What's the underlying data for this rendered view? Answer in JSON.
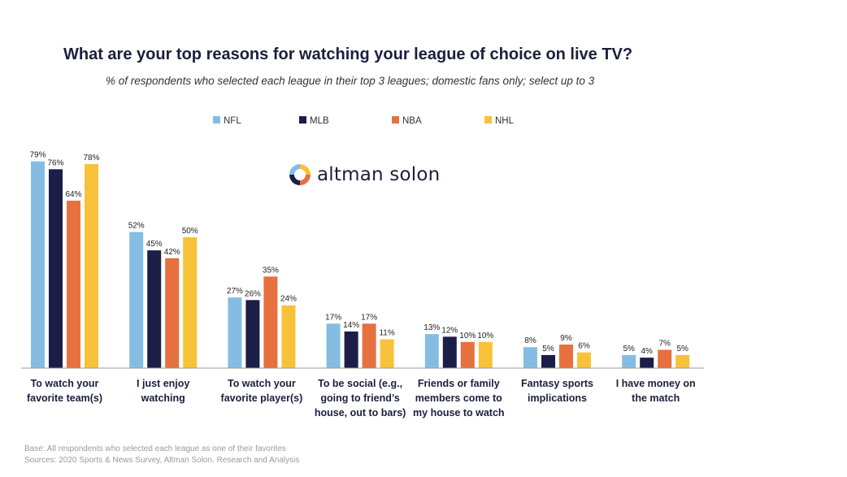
{
  "title": "What are your top reasons for watching your league of choice on live TV?",
  "subtitle": "% of respondents who selected each league in their top 3 leagues; domestic fans only; select up to 3",
  "logo": {
    "text": "altman solon"
  },
  "footer": {
    "base": "Base: All respondents who selected each league as one of their favorites",
    "sources": "Sources: 2020 Sports & News Survey,  Altman Solon. Research and Analysis"
  },
  "colors": {
    "NFL": "#85bde2",
    "MLB": "#1b1e47",
    "NBA": "#e7703f",
    "NHL": "#f8c13a",
    "axis": "#9a9a9a",
    "category_text": "#1a1f3d",
    "label_text": "#222222"
  },
  "chart_data": {
    "type": "bar",
    "legend_position": "top-center",
    "grid": false,
    "ylim": [
      0,
      100
    ],
    "categories": [
      [
        "To watch your",
        "favorite team(s)"
      ],
      [
        "I just enjoy",
        "watching"
      ],
      [
        "To watch your",
        "favorite player(s)"
      ],
      [
        "To be social (e.g.,",
        "going to friend’s",
        "house, out to bars)"
      ],
      [
        "Friends or family",
        "members come to",
        "my house to watch"
      ],
      [
        "Fantasy sports",
        "implications"
      ],
      [
        "I have money on",
        "the match"
      ]
    ],
    "series": [
      {
        "name": "NFL",
        "values": [
          79,
          52,
          27,
          17,
          13,
          8,
          5
        ],
        "labels": [
          "79%",
          "52%",
          "27%",
          "17%",
          "13%",
          "8%",
          "5%"
        ]
      },
      {
        "name": "MLB",
        "values": [
          76,
          45,
          26,
          14,
          12,
          5,
          4
        ],
        "labels": [
          "76%",
          "45%",
          "26%",
          "14%",
          "12%",
          "5%",
          "4%"
        ]
      },
      {
        "name": "NBA",
        "values": [
          64,
          42,
          35,
          17,
          10,
          9,
          7
        ],
        "labels": [
          "64%",
          "42%",
          "35%",
          "17%",
          "10%",
          "9%",
          "7%"
        ]
      },
      {
        "name": "NHL",
        "values": [
          78,
          50,
          24,
          11,
          10,
          6,
          5
        ],
        "labels": [
          "78%",
          "50%",
          "24%",
          "11%",
          "10%",
          "6%",
          "5%"
        ]
      }
    ]
  }
}
